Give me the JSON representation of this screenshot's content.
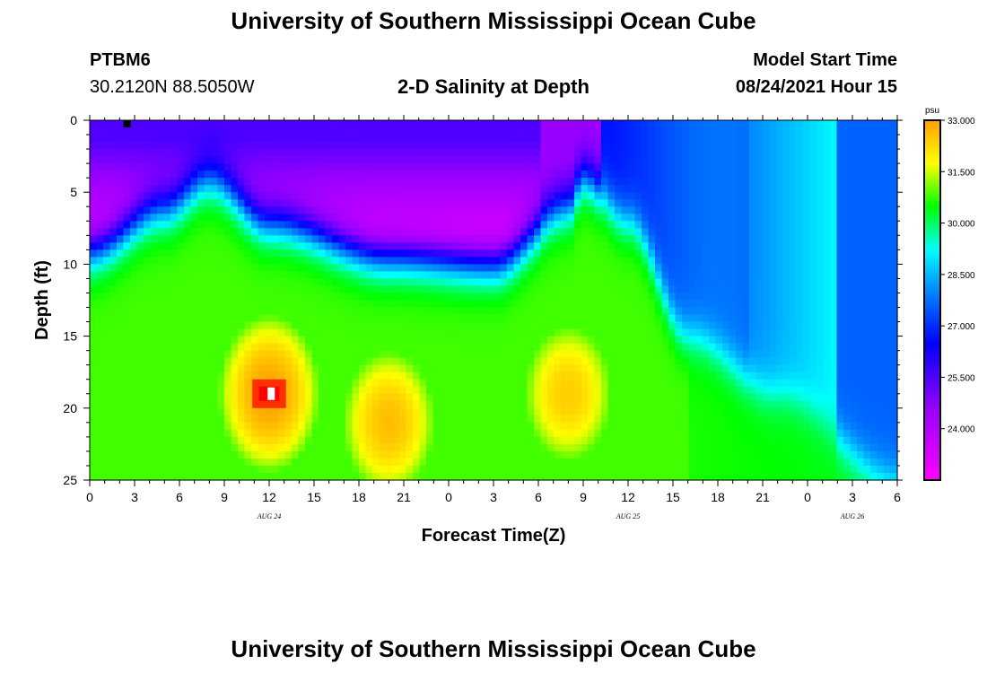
{
  "header": {
    "title": "University of Southern Mississippi Ocean Cube",
    "station": "PTBM6",
    "coordinates": "30.2120N  88.5050W",
    "subtitle": "2-D Salinity at Depth",
    "start_label": "Model Start Time",
    "start_value": "08/24/2021 Hour 15"
  },
  "footer": {
    "title": "University of Southern Mississippi Ocean Cube"
  },
  "chart_data": {
    "type": "heatmap",
    "title": "2-D Salinity at Depth",
    "xlabel": "Forecast Time(Z)",
    "ylabel": "Depth (ft)",
    "x_range_hours": [
      0,
      54
    ],
    "x_tick_labels": [
      "0",
      "3",
      "6",
      "9",
      "12",
      "15",
      "18",
      "21",
      "0",
      "3",
      "6",
      "9",
      "12",
      "15",
      "18",
      "21",
      "0",
      "3",
      "6"
    ],
    "date_labels": [
      {
        "text": "AUG 24",
        "hour": 12
      },
      {
        "text": "AUG 25",
        "hour": 36
      },
      {
        "text": "AUG 26",
        "hour": 51
      }
    ],
    "y_range_ft": [
      0,
      25
    ],
    "y_ticks": [
      0,
      5,
      10,
      15,
      20,
      25
    ],
    "colorbar": {
      "units": "psu",
      "tick_labels": [
        "33.000",
        "31.500",
        "30.000",
        "28.500",
        "27.000",
        "25.500",
        "24.000"
      ],
      "tick_values": [
        33.0,
        31.5,
        30.0,
        28.5,
        27.0,
        25.5,
        24.0
      ],
      "range": [
        22.5,
        33.0
      ]
    },
    "marker_hour": 2.5,
    "field": {
      "description": "Salinity (psu) by forecast hour and depth; low salinity surface layer over high salinity bottom water",
      "surface_min": 22.5,
      "bottom_max": 33.0,
      "interface_depth_ft": [
        {
          "hour": 0,
          "depth": 9
        },
        {
          "hour": 5,
          "depth": 6
        },
        {
          "hour": 8,
          "depth": 4
        },
        {
          "hour": 12,
          "depth": 7
        },
        {
          "hour": 20,
          "depth": 9.5
        },
        {
          "hour": 27,
          "depth": 10
        },
        {
          "hour": 32,
          "depth": 6
        },
        {
          "hour": 33,
          "depth": 4
        },
        {
          "hour": 36,
          "depth": 7
        },
        {
          "hour": 40,
          "depth": 15
        },
        {
          "hour": 46,
          "depth": 19
        },
        {
          "hour": 54,
          "depth": 25
        }
      ],
      "maxima": [
        {
          "hour": 12,
          "depth": 19,
          "value": 33.0
        },
        {
          "hour": 20,
          "depth": 21,
          "value": 32.6
        },
        {
          "hour": 32,
          "depth": 19,
          "value": 32.4
        }
      ]
    }
  }
}
